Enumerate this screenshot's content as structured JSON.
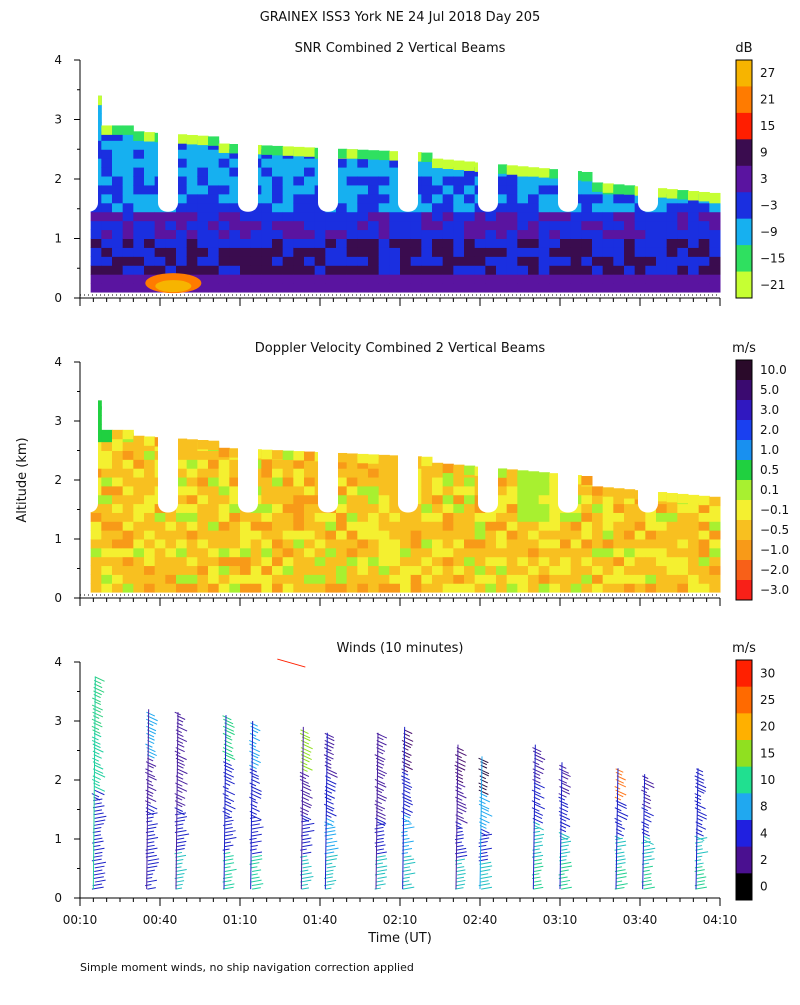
{
  "page_title": "GRAINEX ISS3 York NE  24 Jul 2018 Day 205",
  "y_axis_label": "Altitude (km)",
  "x_axis_label": "Time (UT)",
  "footnote": "Simple moment winds, no ship navigation correction applied",
  "chart_data": [
    {
      "type": "heatmap",
      "title": "SNR Combined 2 Vertical Beams",
      "colorbar_unit": "dB",
      "colorbar_labels": [
        "27",
        "21",
        "15",
        "9",
        "3",
        "−3",
        "−9",
        "−15",
        "−21"
      ],
      "colorbar_colors": [
        "#f7b400",
        "#ff7b00",
        "#ff1e00",
        "#3a0c4f",
        "#5a14a0",
        "#1a2fe0",
        "#16b0f0",
        "#2fe060",
        "#c6ff33"
      ],
      "x_range_min": [
        10,
        250
      ],
      "y_range_km": [
        0,
        4
      ],
      "y_ticks": [
        "0",
        "1",
        "2",
        "3",
        "4"
      ]
    },
    {
      "type": "heatmap",
      "title": "Doppler Velocity Combined 2 Vertical Beams",
      "colorbar_unit": "m/s",
      "colorbar_labels": [
        "10.0",
        "5.0",
        "3.0",
        "2.0",
        "1.0",
        "0.5",
        "0.1",
        "−0.1",
        "−0.5",
        "−1.0",
        "−2.0",
        "−3.0"
      ],
      "colorbar_colors": [
        "#2a0a2a",
        "#3a0a70",
        "#3018c0",
        "#1a40f0",
        "#1890f0",
        "#20d040",
        "#a8f030",
        "#f4f030",
        "#f8c020",
        "#f89a18",
        "#f86018",
        "#f82018"
      ],
      "x_range_min": [
        10,
        250
      ],
      "y_range_km": [
        0,
        4
      ],
      "y_ticks": [
        "0",
        "1",
        "2",
        "3",
        "4"
      ]
    },
    {
      "type": "scatter",
      "title": "Winds (10 minutes)",
      "colorbar_unit": "m/s",
      "colorbar_labels": [
        "30",
        "25",
        "20",
        "15",
        "10",
        "8",
        "4",
        "2",
        "0"
      ],
      "colorbar_colors": [
        "#ff2000",
        "#ff6a00",
        "#ffb000",
        "#90e020",
        "#20e090",
        "#20a8f0",
        "#2020e0",
        "#4a1090",
        "#000000"
      ],
      "x_range_min": [
        10,
        250
      ],
      "x_ticks": [
        "00:10",
        "00:40",
        "01:10",
        "01:40",
        "02:10",
        "02:40",
        "03:10",
        "03:40",
        "04:10"
      ],
      "y_range_km": [
        0,
        4
      ],
      "y_ticks": [
        "0",
        "1",
        "2",
        "3",
        "4"
      ],
      "profiles": [
        {
          "t": 15,
          "top_km": 3.75,
          "colors": [
            "#1a20c8",
            "#1a20c8",
            "#20d0a0",
            "#30d080"
          ]
        },
        {
          "t": 35,
          "top_km": 3.2,
          "colors": [
            "#1a20c8",
            "#1a20c8",
            "#4a20a0",
            "#20a8f0"
          ]
        },
        {
          "t": 46,
          "top_km": 3.15,
          "colors": [
            "#20c0c0",
            "#1a20c8",
            "#4a20a0",
            "#4a20a0"
          ]
        },
        {
          "t": 64,
          "top_km": 3.1,
          "colors": [
            "#20d0a0",
            "#1a20c8",
            "#1a20c8",
            "#20d080"
          ]
        },
        {
          "t": 74,
          "top_km": 3.0,
          "colors": [
            "#20d0a0",
            "#1a20c8",
            "#1a20c8",
            "#20a8f0"
          ]
        },
        {
          "t": 93,
          "top_km": 2.9,
          "colors": [
            "#20c0c0",
            "#1a20c8",
            "#4a20a0",
            "#90e020"
          ]
        },
        {
          "t": 102,
          "top_km": 2.8,
          "colors": [
            "#20c0c0",
            "#20a8f0",
            "#1a20c8",
            "#4a20a0"
          ]
        },
        {
          "t": 121,
          "top_km": 2.8,
          "colors": [
            "#20c0c0",
            "#1a20c8",
            "#4a20a0",
            "#4a20a0"
          ]
        },
        {
          "t": 131,
          "top_km": 2.9,
          "colors": [
            "#20c0c0",
            "#20a8f0",
            "#1a20c8",
            "#4a1070"
          ]
        },
        {
          "t": 151,
          "top_km": 2.6,
          "colors": [
            "#20c0c0",
            "#1a20c8",
            "#4a20a0",
            "#4a1070"
          ]
        },
        {
          "t": 160,
          "top_km": 2.4,
          "colors": [
            "#20c0c0",
            "#1a20c8",
            "#20a8f0",
            "#2a1040"
          ]
        },
        {
          "t": 180,
          "top_km": 2.6,
          "colors": [
            "#20d090",
            "#20c0c0",
            "#1a20c8",
            "#4a20a0"
          ]
        },
        {
          "t": 190,
          "top_km": 2.3,
          "colors": [
            "#20d090",
            "#20c0c0",
            "#1a20c8",
            "#4a20a0"
          ]
        },
        {
          "t": 211,
          "top_km": 2.2,
          "colors": [
            "#20d090",
            "#20c0c0",
            "#1a20c8",
            "#ff7a20"
          ]
        },
        {
          "t": 221,
          "top_km": 2.1,
          "colors": [
            "#20d090",
            "#20c0c0",
            "#1a20c8",
            "#4a20a0"
          ]
        },
        {
          "t": 241,
          "top_km": 2.2,
          "colors": [
            "#20d090",
            "#20c0c0",
            "#1a20c8",
            "#2020c0"
          ]
        }
      ],
      "outlier_barb": {
        "t": 84,
        "km": 4.05,
        "color": "#ff2000"
      }
    }
  ]
}
